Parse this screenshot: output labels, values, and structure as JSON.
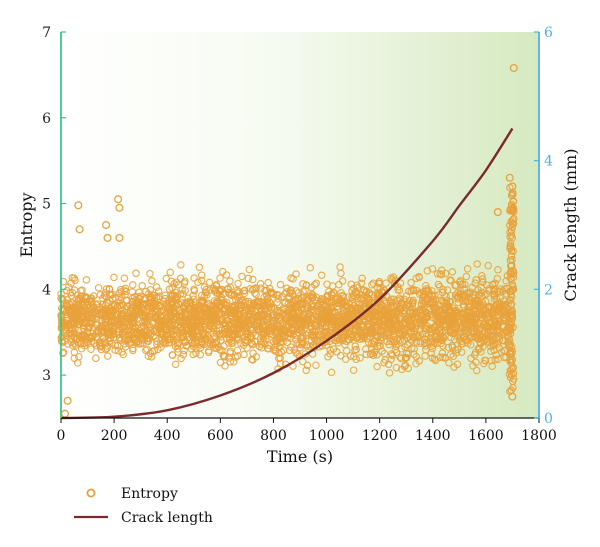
{
  "chart_data": {
    "type": "scatter",
    "title": "",
    "xlabel": "Time (s)",
    "ylabel_left": "Entropy",
    "ylabel_right": "Crack length (mm)",
    "xlim": [
      0,
      1800
    ],
    "ylim_left": [
      2.5,
      7
    ],
    "ylim_right": [
      0,
      6
    ],
    "x_ticks": [
      "0",
      "200",
      "400",
      "600",
      "800",
      "1000",
      "1200",
      "1400",
      "1600",
      "1800"
    ],
    "y_ticks_left": [
      "3",
      "4",
      "5",
      "6",
      "7"
    ],
    "y_ticks_right": [
      "0",
      "2",
      "4",
      "6"
    ],
    "grid": false,
    "legend_position": "bottom-left",
    "series": [
      {
        "name": "Entropy",
        "kind": "scatter",
        "axis": "left",
        "color": "#E9A23B",
        "band": {
          "x_range": [
            0,
            1700
          ],
          "center": 3.65,
          "half_width_start": 0.6,
          "half_width_end": 0.8
        },
        "outliers": [
          {
            "x": 15,
            "y": 2.55
          },
          {
            "x": 25,
            "y": 2.7
          },
          {
            "x": 65,
            "y": 4.98
          },
          {
            "x": 70,
            "y": 4.7
          },
          {
            "x": 170,
            "y": 4.75
          },
          {
            "x": 175,
            "y": 4.6
          },
          {
            "x": 215,
            "y": 5.05
          },
          {
            "x": 220,
            "y": 4.95
          },
          {
            "x": 220,
            "y": 4.6
          },
          {
            "x": 1645,
            "y": 4.9
          },
          {
            "x": 1690,
            "y": 5.3
          },
          {
            "x": 1700,
            "y": 5.2
          },
          {
            "x": 1700,
            "y": 2.75
          },
          {
            "x": 1705,
            "y": 6.58
          }
        ]
      },
      {
        "name": "Crack length",
        "kind": "line",
        "axis": "right",
        "color": "#7B2A2E",
        "x": [
          0,
          200,
          400,
          600,
          800,
          1000,
          1200,
          1400,
          1500,
          1600,
          1700
        ],
        "y": [
          0,
          0.02,
          0.12,
          0.35,
          0.7,
          1.2,
          1.85,
          2.75,
          3.3,
          3.85,
          4.5
        ]
      }
    ]
  },
  "legend": {
    "entropy_label": "Entropy",
    "crack_label": "Crack length"
  },
  "colors": {
    "left_axis": "#3CC48A",
    "right_axis": "#4AB3E8",
    "bg_start": "#ffffff",
    "bg_end": "#d6e9c0"
  }
}
